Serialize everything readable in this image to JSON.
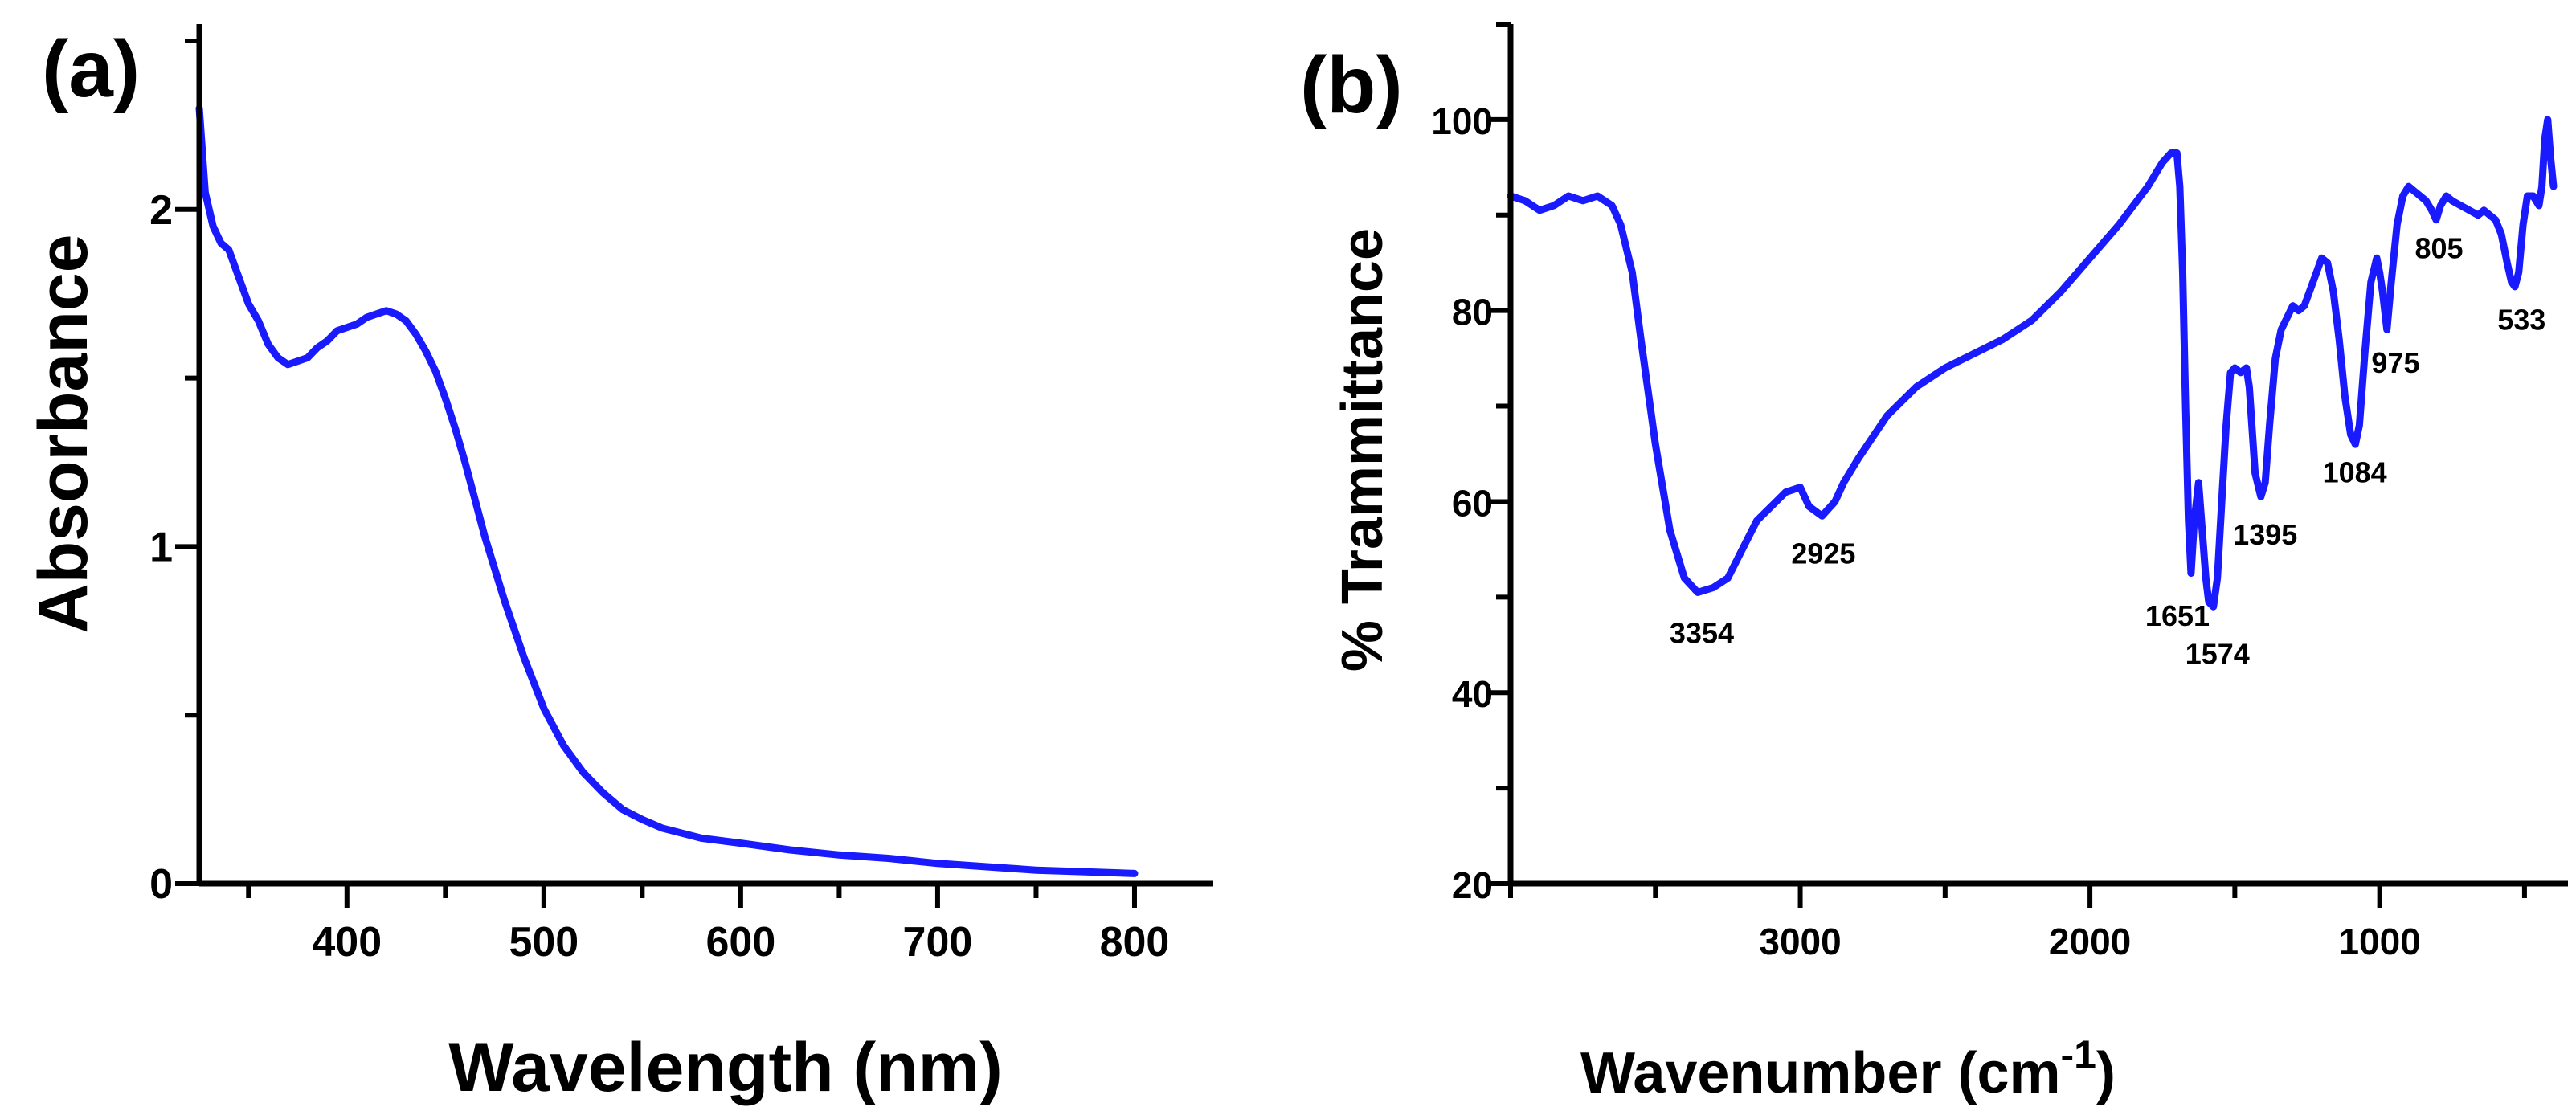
{
  "chart_data": [
    {
      "type": "line",
      "panel_label": "(a)",
      "xlabel": "Wavelength (nm)",
      "ylabel": "Absorbance",
      "xlim": [
        325,
        840
      ],
      "ylim": [
        0,
        2.55
      ],
      "x_ticks": [
        400,
        500,
        600,
        700,
        800
      ],
      "y_ticks": [
        0,
        1,
        2
      ],
      "grid": false,
      "color": "#1a1aff",
      "series": [
        {
          "x": [
            325,
            328,
            332,
            336,
            340,
            345,
            350,
            355,
            360,
            365,
            370,
            375,
            380,
            385,
            390,
            395,
            400,
            405,
            410,
            415,
            420,
            425,
            430,
            435,
            440,
            445,
            450,
            455,
            460,
            465,
            470,
            480,
            490,
            500,
            510,
            520,
            530,
            540,
            550,
            560,
            580,
            600,
            625,
            650,
            675,
            700,
            725,
            750,
            775,
            800
          ],
          "y": [
            2.3,
            2.05,
            1.95,
            1.9,
            1.88,
            1.8,
            1.72,
            1.67,
            1.6,
            1.56,
            1.54,
            1.55,
            1.56,
            1.59,
            1.61,
            1.64,
            1.65,
            1.66,
            1.68,
            1.69,
            1.7,
            1.69,
            1.67,
            1.63,
            1.58,
            1.52,
            1.44,
            1.35,
            1.25,
            1.14,
            1.03,
            0.84,
            0.67,
            0.52,
            0.41,
            0.33,
            0.27,
            0.22,
            0.19,
            0.165,
            0.135,
            0.12,
            0.1,
            0.085,
            0.075,
            0.06,
            0.05,
            0.04,
            0.035,
            0.03
          ]
        }
      ]
    },
    {
      "type": "line",
      "panel_label": "(b)",
      "xlabel": "Wavenumber (cm",
      "xlabel_sup": "-1",
      "xlabel_end": ")",
      "ylabel": "% Trammittance",
      "xlim": [
        4000,
        350
      ],
      "ylim": [
        20,
        110
      ],
      "x_ticks": [
        3000,
        2000,
        1000
      ],
      "y_ticks": [
        20,
        40,
        60,
        80,
        100
      ],
      "grid": false,
      "color": "#1a1aff",
      "series": [
        {
          "x": [
            4000,
            3950,
            3900,
            3850,
            3800,
            3750,
            3700,
            3650,
            3620,
            3580,
            3550,
            3500,
            3450,
            3400,
            3354,
            3300,
            3250,
            3200,
            3150,
            3100,
            3050,
            3000,
            2970,
            2925,
            2880,
            2850,
            2800,
            2700,
            2600,
            2500,
            2400,
            2300,
            2200,
            2100,
            2000,
            1900,
            1800,
            1750,
            1720,
            1700,
            1690,
            1680,
            1670,
            1660,
            1651,
            1640,
            1625,
            1610,
            1600,
            1590,
            1574,
            1560,
            1545,
            1530,
            1515,
            1500,
            1480,
            1460,
            1450,
            1430,
            1410,
            1395,
            1380,
            1360,
            1340,
            1300,
            1280,
            1260,
            1230,
            1200,
            1180,
            1160,
            1140,
            1120,
            1100,
            1084,
            1070,
            1050,
            1030,
            1010,
            1000,
            990,
            975,
            960,
            940,
            920,
            900,
            880,
            860,
            840,
            820,
            805,
            790,
            770,
            750,
            720,
            690,
            660,
            640,
            620,
            600,
            580,
            560,
            545,
            533,
            520,
            505,
            490,
            470,
            450,
            440,
            430,
            420,
            410,
            400
          ],
          "y": [
            92,
            91.5,
            90.5,
            91,
            92,
            91.5,
            92,
            91,
            89,
            84,
            77,
            66,
            57,
            52,
            50.5,
            51,
            52,
            55,
            58,
            59.5,
            61,
            61.5,
            59.5,
            58.5,
            60,
            62,
            64.5,
            69,
            72,
            74,
            75.5,
            77,
            79,
            82,
            85.5,
            89,
            93,
            95.5,
            96.5,
            96.5,
            93,
            84,
            70,
            58,
            52.5,
            58,
            62,
            56,
            52,
            49.5,
            49,
            52,
            60,
            68,
            73.5,
            74,
            73.5,
            74,
            72,
            63,
            60.5,
            62,
            68,
            75,
            78,
            80.5,
            80,
            80.5,
            83,
            85.5,
            85,
            82,
            77,
            71,
            67,
            66,
            68,
            76,
            83,
            85.5,
            84,
            82,
            78,
            83,
            89,
            92,
            93,
            92.5,
            92,
            91.5,
            90.5,
            89.5,
            91,
            92,
            91.5,
            91,
            90.5,
            90,
            90.5,
            90,
            89.5,
            88,
            85,
            83,
            82.5,
            84,
            89,
            92,
            92,
            91,
            93,
            98,
            100,
            96,
            93
          ]
        }
      ],
      "annotations": [
        {
          "text": "3354",
          "x": 3340,
          "y": 45.2
        },
        {
          "text": "2925",
          "x": 2920,
          "y": 53.5
        },
        {
          "text": "1651",
          "x": 1698,
          "y": 47
        },
        {
          "text": "1574",
          "x": 1560,
          "y": 43
        },
        {
          "text": "1395",
          "x": 1395,
          "y": 55.5
        },
        {
          "text": "1084",
          "x": 1086,
          "y": 62
        },
        {
          "text": "975",
          "x": 945,
          "y": 73.5
        },
        {
          "text": "805",
          "x": 795,
          "y": 85.5
        },
        {
          "text": "533",
          "x": 510,
          "y": 78
        }
      ]
    }
  ]
}
